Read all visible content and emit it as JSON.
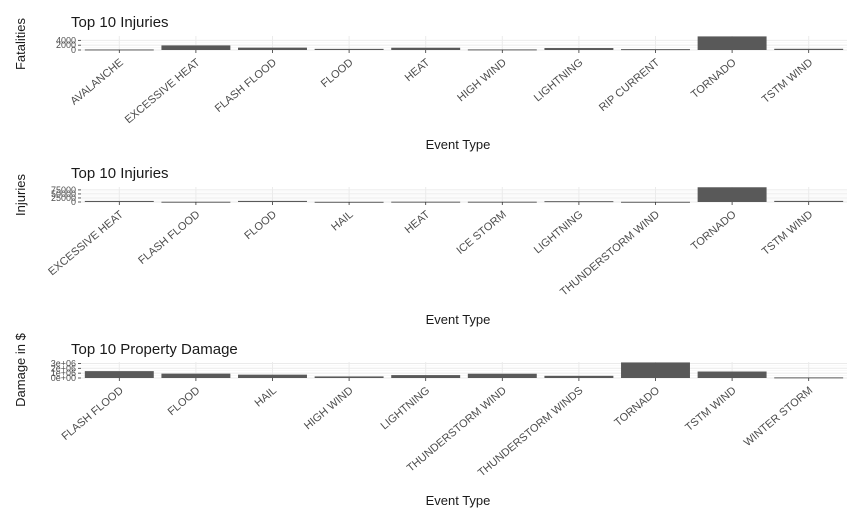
{
  "chart_data": [
    {
      "type": "bar",
      "title": "Top 10 Injuries",
      "xlabel": "Event Type",
      "ylabel": "Fatalities",
      "categories": [
        "AVALANCHE",
        "EXCESSIVE HEAT",
        "FLASH FLOOD",
        "FLOOD",
        "HEAT",
        "HIGH WIND",
        "LIGHTNING",
        "RIP CURRENT",
        "TORNADO",
        "TSTM WIND"
      ],
      "values": [
        224,
        1903,
        978,
        470,
        937,
        248,
        816,
        368,
        5633,
        504
      ],
      "ylim": [
        0,
        5800
      ],
      "yticks": [
        0,
        2000,
        4000
      ],
      "ytick_labels": [
        "0",
        "2000",
        "4000"
      ],
      "grid": true
    },
    {
      "type": "bar",
      "title": "Top 10 Injuries",
      "xlabel": "Event Type",
      "ylabel": "Injuries",
      "categories": [
        "EXCESSIVE HEAT",
        "FLASH FLOOD",
        "FLOOD",
        "HAIL",
        "HEAT",
        "ICE STORM",
        "LIGHTNING",
        "THUNDERSTORM WIND",
        "TORNADO",
        "TSTM WIND"
      ],
      "values": [
        6525,
        1777,
        6789,
        1361,
        2100,
        1975,
        5230,
        1488,
        91346,
        6957
      ],
      "ylim": [
        0,
        93000
      ],
      "yticks": [
        0,
        25000,
        50000,
        75000
      ],
      "ytick_labels": [
        "0",
        "25000",
        "50000",
        "75000"
      ],
      "grid": true
    },
    {
      "type": "bar",
      "title": "Top 10 Property Damage",
      "xlabel": "Event Type",
      "ylabel": "Damage in $",
      "categories": [
        "FLASH FLOOD",
        "FLOOD",
        "HAIL",
        "HIGH WIND",
        "LIGHTNING",
        "THUNDERSTORM WIND",
        "THUNDERSTORM WINDS",
        "TORNADO",
        "TSTM WIND",
        "WINTER STORM"
      ],
      "values": [
        1420000,
        900000,
        690000,
        325000,
        600000,
        880000,
        450000,
        3210000,
        1340000,
        130000
      ],
      "ylim": [
        0,
        3300000
      ],
      "yticks": [
        0,
        1000000,
        2000000,
        3000000
      ],
      "ytick_labels": [
        "0e+00",
        "1e+06",
        "2e+06",
        "3e+06"
      ],
      "grid": true
    }
  ]
}
